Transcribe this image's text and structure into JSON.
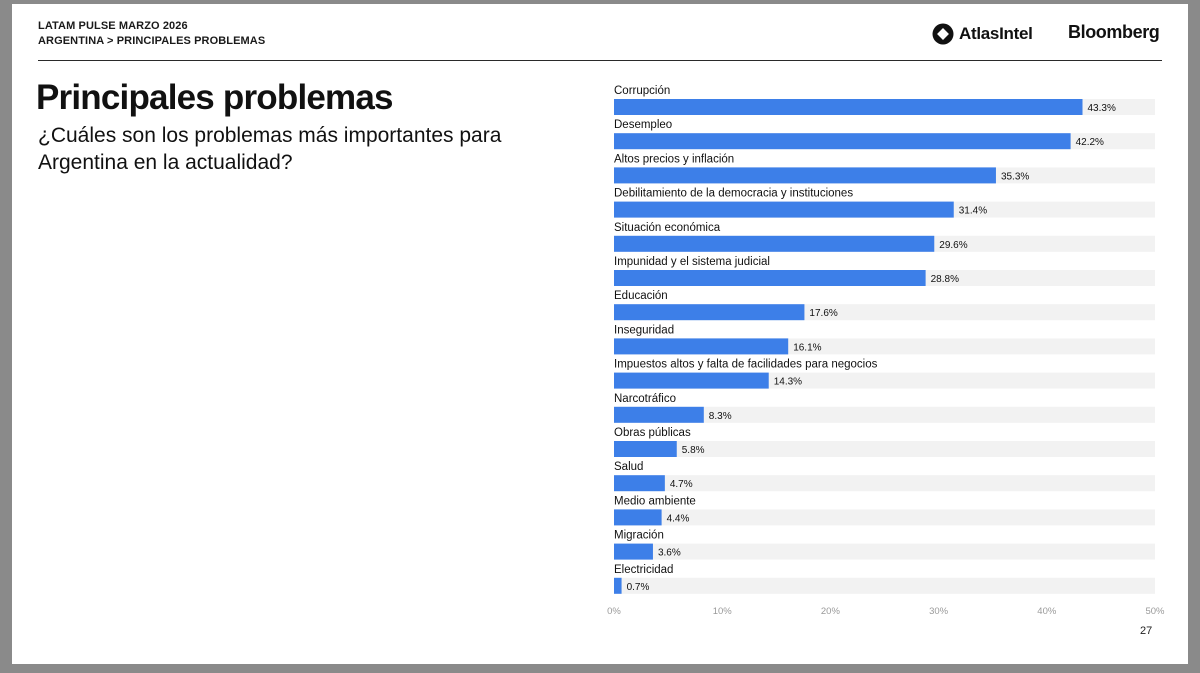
{
  "header": {
    "breadcrumb_top": "LATAM PULSE MARZO 2026",
    "breadcrumb_sub": "ARGENTINA > PRINCIPALES PROBLEMAS",
    "logo_atlas": "AtlasIntel",
    "logo_bloomberg": "Bloomberg"
  },
  "page": {
    "title": "Principales problemas",
    "subtitle": "¿Cuáles son los problemas más importantes para Argentina en la actualidad?",
    "page_number": "27"
  },
  "colors": {
    "bar": "#3d7fe8",
    "track": "#f2f2f2",
    "text": "#111111",
    "axis_text": "#9a9a9a"
  },
  "chart_data": {
    "type": "bar",
    "orientation": "horizontal",
    "categories": [
      "Corrupción",
      "Desempleo",
      "Altos precios y inflación",
      "Debilitamiento de la democracia y instituciones",
      "Situación económica",
      "Impunidad y el sistema judicial",
      "Educación",
      "Inseguridad",
      "Impuestos altos y falta de facilidades para negocios",
      "Narcotráfico",
      "Obras públicas",
      "Salud",
      "Medio ambiente",
      "Migración",
      "Electricidad"
    ],
    "values": [
      43.3,
      42.2,
      35.3,
      31.4,
      29.6,
      28.8,
      17.6,
      16.1,
      14.3,
      8.3,
      5.8,
      4.7,
      4.4,
      3.6,
      0.7
    ],
    "value_labels": [
      "43.3%",
      "42.2%",
      "35.3%",
      "31.4%",
      "29.6%",
      "28.8%",
      "17.6%",
      "16.1%",
      "14.3%",
      "8.3%",
      "5.8%",
      "4.7%",
      "4.4%",
      "3.6%",
      "0.7%"
    ],
    "xlim": [
      0,
      50
    ],
    "x_ticks": [
      0,
      10,
      20,
      30,
      40,
      50
    ],
    "x_tick_labels": [
      "0%",
      "10%",
      "20%",
      "30%",
      "40%",
      "50%"
    ],
    "title": "",
    "xlabel": "",
    "ylabel": "",
    "grid": false,
    "legend": "none"
  }
}
